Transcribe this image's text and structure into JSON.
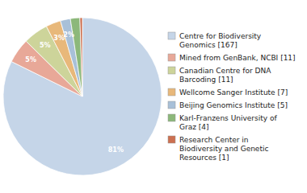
{
  "chart_data": {
    "type": "pie",
    "categories": [
      "Centre for Biodiversity\nGenomics [167]",
      "Mined from GenBank, NCBI [11]",
      "Canadian Centre for DNA\nBarcoding [11]",
      "Wellcome Sanger Institute [7]",
      "Beijing Genomics Institute [5]",
      "Karl-Franzens University of\nGraz [4]",
      "Research Center in\nBiodiversity and Genetic\nResources [1]"
    ],
    "values": [
      81,
      5,
      5,
      3,
      2,
      1.9,
      0.5
    ],
    "value_labels": [
      "81%",
      "5%",
      "5%",
      "3%",
      "2%",
      null,
      null
    ],
    "colors": [
      "#c5d5e8",
      "#e8a898",
      "#cdd49a",
      "#e8b87a",
      "#a8c0d8",
      "#8cb87a",
      "#cc7050"
    ],
    "data_labels": true,
    "legend": "right"
  }
}
